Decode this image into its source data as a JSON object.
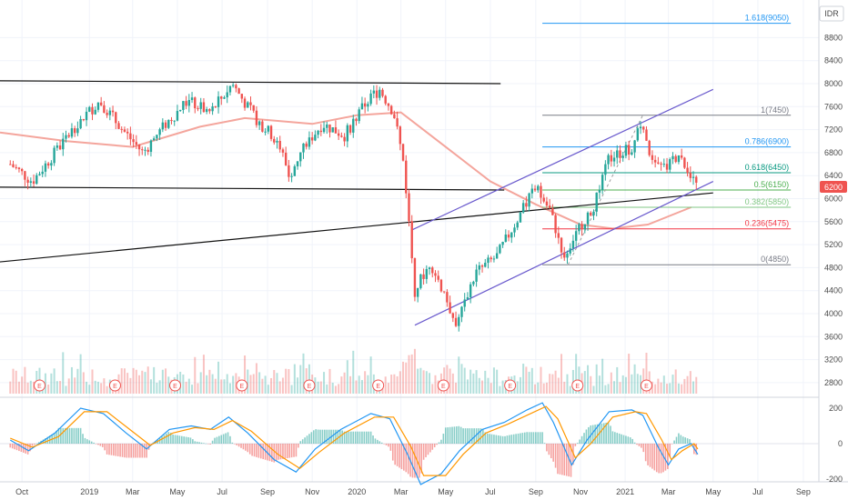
{
  "currency": "IDR",
  "last_price_label": "6200",
  "colors": {
    "candle_up": "#26a69a",
    "candle_down": "#ef5350",
    "ma": "#f4a59c",
    "channel": "#6a5acd",
    "trend": "#111111",
    "macd": "#2196f3",
    "signal": "#ff9800",
    "last_price": "#ef5350"
  },
  "chart_data": [
    {
      "type": "candlestick",
      "yticks": [
        2800,
        3200,
        3600,
        4000,
        4400,
        4800,
        5200,
        5600,
        6000,
        6400,
        6800,
        7200,
        7600,
        8000,
        8400,
        8800
      ],
      "xticks": [
        "Oct",
        "2019",
        "Mar",
        "May",
        "Jul",
        "Sep",
        "Nov",
        "2020",
        "Mar",
        "May",
        "Jul",
        "Sep",
        "Nov",
        "2021",
        "Mar",
        "May",
        "Jul",
        "Sep"
      ],
      "xtick_dates": [
        "2018-10",
        "2019-01",
        "2019-03",
        "2019-05",
        "2019-07",
        "2019-09",
        "2019-11",
        "2020-01",
        "2020-03",
        "2020-05",
        "2020-07",
        "2020-09",
        "2020-11",
        "2021-01",
        "2021-03",
        "2021-05",
        "2021-07",
        "2021-09"
      ],
      "ylim": [
        2600,
        9200
      ],
      "price_path": [
        [
          "2018-09-15",
          6600
        ],
        [
          "2018-10-15",
          6300
        ],
        [
          "2018-11-15",
          6800
        ],
        [
          "2018-12-15",
          7300
        ],
        [
          "2019-01-15",
          7700
        ],
        [
          "2019-02-15",
          7200
        ],
        [
          "2019-03-15",
          6800
        ],
        [
          "2019-04-15",
          7300
        ],
        [
          "2019-05-15",
          7700
        ],
        [
          "2019-06-15",
          7500
        ],
        [
          "2019-07-15",
          8000
        ],
        [
          "2019-08-15",
          7400
        ],
        [
          "2019-09-15",
          7000
        ],
        [
          "2019-10-01",
          6400
        ],
        [
          "2019-10-20",
          6900
        ],
        [
          "2019-11-15",
          7300
        ],
        [
          "2019-12-15",
          7100
        ],
        [
          "2020-01-15",
          7700
        ],
        [
          "2020-02-01",
          7900
        ],
        [
          "2020-02-20",
          7500
        ],
        [
          "2020-03-05",
          6600
        ],
        [
          "2020-03-20",
          4400
        ],
        [
          "2020-04-10",
          4900
        ],
        [
          "2020-05-01",
          4300
        ],
        [
          "2020-05-15",
          3800
        ],
        [
          "2020-06-10",
          4700
        ],
        [
          "2020-07-10",
          5000
        ],
        [
          "2020-08-05",
          5600
        ],
        [
          "2020-09-01",
          6200
        ],
        [
          "2020-09-20",
          5800
        ],
        [
          "2020-10-10",
          5000
        ],
        [
          "2020-10-25",
          5400
        ],
        [
          "2020-11-20",
          5900
        ],
        [
          "2020-12-10",
          6700
        ],
        [
          "2021-01-10",
          6900
        ],
        [
          "2021-01-20",
          7400
        ],
        [
          "2021-02-05",
          6600
        ],
        [
          "2021-02-25",
          6500
        ],
        [
          "2021-03-15",
          6800
        ],
        [
          "2021-04-01",
          6400
        ],
        [
          "2021-04-10",
          6200
        ]
      ],
      "moving_average": [
        [
          "2018-09-01",
          7150
        ],
        [
          "2018-12-01",
          7000
        ],
        [
          "2019-03-01",
          6900
        ],
        [
          "2019-06-01",
          7250
        ],
        [
          "2019-08-01",
          7400
        ],
        [
          "2019-11-01",
          7300
        ],
        [
          "2020-01-01",
          7450
        ],
        [
          "2020-03-01",
          7500
        ],
        [
          "2020-05-01",
          6900
        ],
        [
          "2020-07-01",
          6300
        ],
        [
          "2020-09-01",
          5900
        ],
        [
          "2020-11-01",
          5550
        ],
        [
          "2020-12-15",
          5480
        ],
        [
          "2021-02-01",
          5550
        ],
        [
          "2021-04-01",
          5850
        ]
      ],
      "trend_lines": [
        {
          "from": [
            "2018-09-01",
            8050
          ],
          "to": [
            "2020-07-15",
            8000
          ]
        },
        {
          "from": [
            "2018-09-01",
            6200
          ],
          "to": [
            "2020-07-20",
            6150
          ]
        },
        {
          "from": [
            "2018-09-01",
            4900
          ],
          "to": [
            "2021-05-01",
            6100
          ]
        },
        {
          "from": [
            "2020-03-15",
            5450
          ],
          "to": [
            "2021-05-01",
            7900
          ]
        },
        {
          "from": [
            "2020-03-20",
            3800
          ],
          "to": [
            "2021-05-01",
            6300
          ]
        }
      ],
      "fibonacci": {
        "start": "2020-09-10",
        "end": "2021-04-10",
        "levels": [
          {
            "label": "1.618(9050)",
            "value": 9050,
            "color": "#2196f3"
          },
          {
            "label": "1(7450)",
            "value": 7450,
            "color": "#787b86"
          },
          {
            "label": "0.786(6900)",
            "value": 6900,
            "color": "#2196f3"
          },
          {
            "label": "0.618(6450)",
            "value": 6450,
            "color": "#089981"
          },
          {
            "label": "0.5(6150)",
            "value": 6150,
            "color": "#4caf50"
          },
          {
            "label": "0.382(5850)",
            "value": 5850,
            "color": "#81c784"
          },
          {
            "label": "0.236(5475)",
            "value": 5475,
            "color": "#f23645"
          },
          {
            "label": "0(4850)",
            "value": 4850,
            "color": "#787b86"
          }
        ]
      },
      "event_markers": [
        {
          "date": "2018-10-25",
          "label": "E"
        },
        {
          "date": "2019-02-05",
          "label": "E"
        },
        {
          "date": "2019-04-28",
          "label": "E"
        },
        {
          "date": "2019-07-28",
          "label": "E"
        },
        {
          "date": "2019-10-28",
          "label": "E"
        },
        {
          "date": "2020-01-30",
          "label": "E"
        },
        {
          "date": "2020-04-28",
          "label": "E"
        },
        {
          "date": "2020-07-28",
          "label": "E"
        },
        {
          "date": "2020-10-28",
          "label": "E"
        },
        {
          "date": "2021-01-30",
          "label": "E"
        }
      ]
    },
    {
      "type": "macd",
      "yticks": [
        200,
        0,
        -200
      ],
      "ylim": [
        -240,
        240
      ],
      "macd": [
        [
          "2018-09-15",
          20
        ],
        [
          "2018-10-10",
          -40
        ],
        [
          "2018-11-15",
          60
        ],
        [
          "2018-12-20",
          200
        ],
        [
          "2019-01-20",
          170
        ],
        [
          "2019-02-20",
          60
        ],
        [
          "2019-03-20",
          -30
        ],
        [
          "2019-04-20",
          80
        ],
        [
          "2019-05-20",
          100
        ],
        [
          "2019-06-15",
          80
        ],
        [
          "2019-07-10",
          150
        ],
        [
          "2019-08-05",
          60
        ],
        [
          "2019-09-10",
          -90
        ],
        [
          "2019-10-10",
          -160
        ],
        [
          "2019-11-05",
          -30
        ],
        [
          "2019-12-10",
          80
        ],
        [
          "2020-01-20",
          170
        ],
        [
          "2020-02-15",
          140
        ],
        [
          "2020-03-10",
          -60
        ],
        [
          "2020-03-28",
          -230
        ],
        [
          "2020-04-25",
          -170
        ],
        [
          "2020-05-20",
          -40
        ],
        [
          "2020-06-20",
          80
        ],
        [
          "2020-07-20",
          120
        ],
        [
          "2020-08-20",
          190
        ],
        [
          "2020-09-10",
          230
        ],
        [
          "2020-09-25",
          120
        ],
        [
          "2020-10-20",
          -120
        ],
        [
          "2020-11-10",
          20
        ],
        [
          "2020-12-10",
          180
        ],
        [
          "2021-01-10",
          190
        ],
        [
          "2021-01-25",
          160
        ],
        [
          "2021-02-15",
          -20
        ],
        [
          "2021-03-01",
          -120
        ],
        [
          "2021-03-15",
          -30
        ],
        [
          "2021-04-01",
          0
        ],
        [
          "2021-04-10",
          -60
        ]
      ],
      "signal": [
        [
          "2018-09-15",
          30
        ],
        [
          "2018-10-15",
          -20
        ],
        [
          "2018-11-20",
          40
        ],
        [
          "2018-12-25",
          180
        ],
        [
          "2019-01-25",
          180
        ],
        [
          "2019-02-25",
          80
        ],
        [
          "2019-03-25",
          -10
        ],
        [
          "2019-04-25",
          60
        ],
        [
          "2019-05-25",
          90
        ],
        [
          "2019-06-20",
          80
        ],
        [
          "2019-07-15",
          130
        ],
        [
          "2019-08-10",
          70
        ],
        [
          "2019-09-15",
          -60
        ],
        [
          "2019-10-15",
          -140
        ],
        [
          "2019-11-10",
          -50
        ],
        [
          "2019-12-15",
          60
        ],
        [
          "2020-01-25",
          150
        ],
        [
          "2020-02-20",
          150
        ],
        [
          "2020-03-15",
          -20
        ],
        [
          "2020-04-01",
          -180
        ],
        [
          "2020-05-01",
          -180
        ],
        [
          "2020-05-25",
          -60
        ],
        [
          "2020-06-25",
          60
        ],
        [
          "2020-07-25",
          110
        ],
        [
          "2020-08-25",
          170
        ],
        [
          "2020-09-15",
          210
        ],
        [
          "2020-10-01",
          140
        ],
        [
          "2020-10-25",
          -80
        ],
        [
          "2020-11-15",
          0
        ],
        [
          "2020-12-15",
          150
        ],
        [
          "2021-01-15",
          180
        ],
        [
          "2021-01-30",
          170
        ],
        [
          "2021-02-20",
          20
        ],
        [
          "2021-03-05",
          -90
        ],
        [
          "2021-03-20",
          -40
        ],
        [
          "2021-04-05",
          0
        ],
        [
          "2021-04-10",
          -30
        ]
      ]
    }
  ]
}
